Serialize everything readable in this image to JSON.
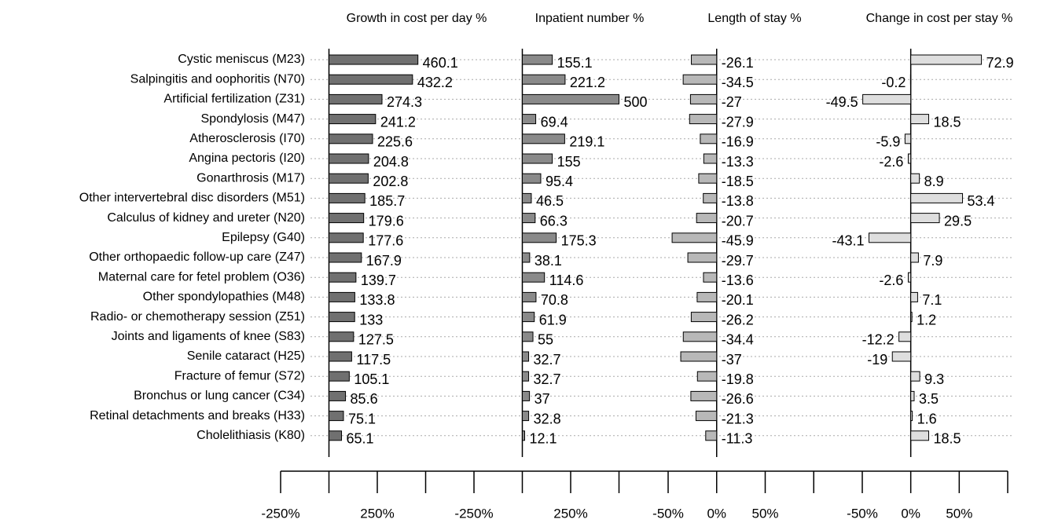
{
  "chart_data": [
    {
      "type": "bar",
      "orientation": "horizontal",
      "title": "Growth in cost per day %",
      "color": "#707070",
      "categories": [
        "Cystic meniscus (M23)",
        "Salpingitis and oophoritis (N70)",
        "Artificial fertilization (Z31)",
        "Spondylosis (M47)",
        "Atherosclerosis (I70)",
        "Angina pectoris (I20)",
        "Gonarthrosis (M17)",
        "Other intervertebral disc disorders (M51)",
        "Calculus of kidney and ureter (N20)",
        "Epilepsy (G40)",
        "Other orthopaedic follow-up care (Z47)",
        "Maternal care for fetel problem (O36)",
        "Other spondylopathies (M48)",
        "Radio- or chemotherapy session (Z51)",
        "Joints and ligaments of knee (S83)",
        "Senile cataract (H25)",
        "Fracture of femur (S72)",
        "Bronchus or lung cancer (C34)",
        "Retinal detachments and breaks (H33)",
        "Cholelithiasis (K80)"
      ],
      "values": [
        460.1,
        432.2,
        274.3,
        241.2,
        225.6,
        204.8,
        202.8,
        185.7,
        179.6,
        177.6,
        167.9,
        139.7,
        133.8,
        133,
        127.5,
        117.5,
        105.1,
        85.6,
        75.1,
        65.1
      ],
      "xlim": [
        -250,
        750
      ],
      "xticks": [
        {
          "value": -250,
          "label": "-250%"
        },
        {
          "value": 250,
          "label": "250%"
        }
      ],
      "minor_xticks": [
        0,
        500
      ]
    },
    {
      "type": "bar",
      "orientation": "horizontal",
      "title": "Inpatient number %",
      "color": "#8a8a8a",
      "values": [
        155.1,
        221.2,
        500,
        69.4,
        219.1,
        155,
        95.4,
        46.5,
        66.3,
        175.3,
        38.1,
        114.6,
        70.8,
        61.9,
        55,
        32.7,
        32.7,
        37,
        32.8,
        12.1
      ],
      "xlim": [
        -250,
        750
      ],
      "xticks": [
        {
          "value": -250,
          "label": "-250%"
        },
        {
          "value": 250,
          "label": "250%"
        }
      ],
      "minor_xticks": [
        0,
        500
      ]
    },
    {
      "type": "bar",
      "orientation": "horizontal",
      "title": "Length of stay %",
      "color": "#b8b8b8",
      "values": [
        -26.1,
        -34.5,
        -27,
        -27.9,
        -16.9,
        -13.3,
        -18.5,
        -13.8,
        -20.7,
        -45.9,
        -29.7,
        -13.6,
        -20.1,
        -26.2,
        -34.4,
        -37,
        -19.8,
        -26.6,
        -21.3,
        -11.3
      ],
      "xlim": [
        -50,
        150
      ],
      "xticks": [
        {
          "value": -50,
          "label": "-50%"
        },
        {
          "value": 0,
          "label": "0%"
        },
        {
          "value": 50,
          "label": "50%"
        }
      ],
      "minor_xticks": [
        100
      ]
    },
    {
      "type": "bar",
      "orientation": "horizontal",
      "title": "Change in cost per stay %",
      "color": "#dedede",
      "values": [
        72.9,
        -0.2,
        -49.5,
        18.5,
        -5.9,
        -2.6,
        8.9,
        53.4,
        29.5,
        -43.1,
        7.9,
        -2.6,
        7.1,
        1.2,
        -12.2,
        -19,
        9.3,
        3.5,
        1.6,
        18.5
      ],
      "xlim": [
        -50,
        100
      ],
      "xticks": [
        {
          "value": -50,
          "label": "-50%"
        },
        {
          "value": 0,
          "label": "0%"
        },
        {
          "value": 50,
          "label": "50%"
        }
      ],
      "minor_xticks": [
        100
      ]
    }
  ]
}
